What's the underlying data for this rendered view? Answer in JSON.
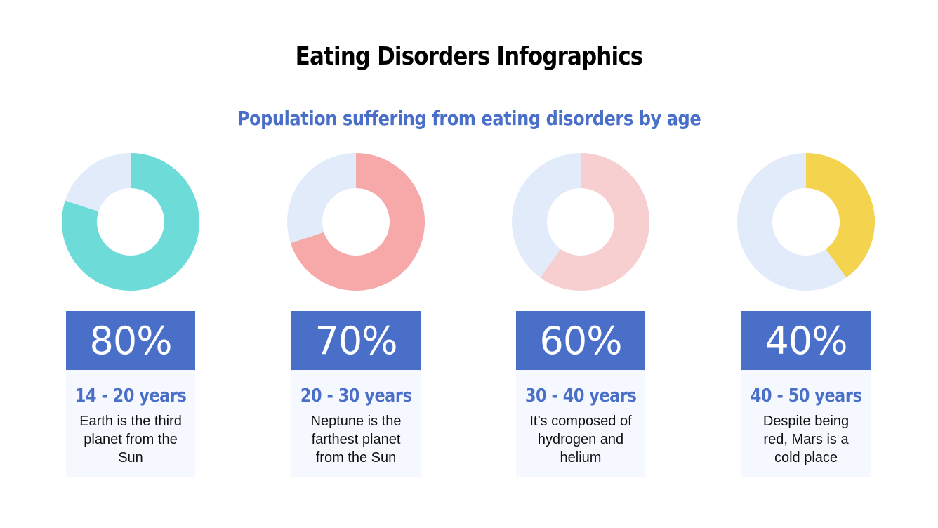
{
  "title": "Eating Disorders Infographics",
  "subtitle": "Population suffering from eating disorders by age",
  "colors": {
    "accent_blue": "#4a6fc9",
    "box_bg": "#f5f8fe",
    "track": "#e2ebfa",
    "title": "#000000",
    "pct_text": "#ffffff"
  },
  "chart_data": {
    "type": "pie",
    "title": "Population suffering from eating disorders by age",
    "categories": [
      "14 - 20 years",
      "20 - 30 years",
      "30 - 40 years",
      "40 - 50 years"
    ],
    "values": [
      80,
      70,
      60,
      40
    ],
    "unit": "%"
  },
  "cards": [
    {
      "percent_label": "80%",
      "value": 80,
      "age_label": "14 - 20 years",
      "description": "Earth is the third planet from the Sun",
      "color": "#6ddcd9"
    },
    {
      "percent_label": "70%",
      "value": 70,
      "age_label": "20 - 30 years",
      "description": "Neptune is the farthest planet from the Sun",
      "color": "#f7a9aa"
    },
    {
      "percent_label": "60%",
      "value": 60,
      "age_label": "30 - 40 years",
      "description": "It’s composed of hydrogen and helium",
      "color": "#f8cfd1"
    },
    {
      "percent_label": "40%",
      "value": 40,
      "age_label": "40 - 50 years",
      "description": "Despite being red, Mars is a cold place",
      "color": "#f4d34e"
    }
  ]
}
